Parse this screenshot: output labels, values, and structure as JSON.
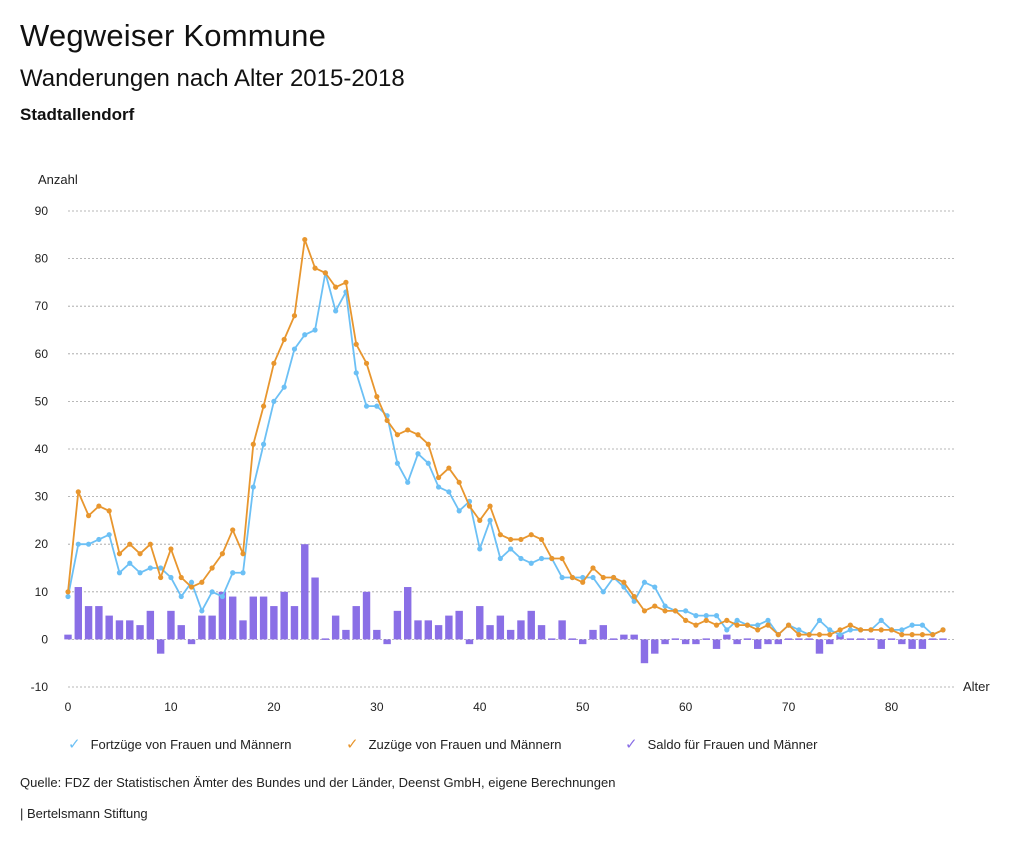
{
  "header": {
    "title": "Wegweiser Kommune",
    "subtitle": "Wanderungen nach Alter 2015-2018",
    "region": "Stadtallendorf"
  },
  "footer": {
    "source": "Quelle: FDZ der Statistischen Ämter des Bundes und der Länder, Deenst GmbH, eigene Berechnungen",
    "credit": "| Bertelsmann Stiftung"
  },
  "legend": {
    "item1": "Fortzüge von Frauen und Männern",
    "item2": "Zuzüge von Frauen und Männern",
    "item3": "Saldo für Frauen und Männer",
    "check": "✓"
  },
  "colors": {
    "fortzuege": "#6cc0f5",
    "zuzuege": "#e8962e",
    "saldo": "#8a6fe6",
    "grid": "#a0a0a0"
  },
  "chart_data": {
    "type": "line",
    "ylabel": "Anzahl",
    "xlabel": "Alter",
    "ylim": [
      -10,
      90
    ],
    "xlim": [
      0,
      85
    ],
    "yticks": [
      -10,
      0,
      10,
      20,
      30,
      40,
      50,
      60,
      70,
      80,
      90
    ],
    "xticks": [
      0,
      10,
      20,
      30,
      40,
      50,
      60,
      70,
      80
    ],
    "grid": true,
    "legend_position": "bottom",
    "x": [
      0,
      1,
      2,
      3,
      4,
      5,
      6,
      7,
      8,
      9,
      10,
      11,
      12,
      13,
      14,
      15,
      16,
      17,
      18,
      19,
      20,
      21,
      22,
      23,
      24,
      25,
      26,
      27,
      28,
      29,
      30,
      31,
      32,
      33,
      34,
      35,
      36,
      37,
      38,
      39,
      40,
      41,
      42,
      43,
      44,
      45,
      46,
      47,
      48,
      49,
      50,
      51,
      52,
      53,
      54,
      55,
      56,
      57,
      58,
      59,
      60,
      61,
      62,
      63,
      64,
      65,
      66,
      67,
      68,
      69,
      70,
      71,
      72,
      73,
      74,
      75,
      76,
      77,
      78,
      79,
      80,
      81,
      82,
      83,
      84,
      85
    ],
    "series": [
      {
        "name": "Fortzüge von Frauen und Männern",
        "type": "line",
        "values": [
          9,
          20,
          20,
          21,
          22,
          14,
          16,
          14,
          15,
          15,
          13,
          9,
          12,
          6,
          10,
          9,
          14,
          14,
          32,
          41,
          50,
          53,
          61,
          64,
          65,
          77,
          69,
          73,
          56,
          49,
          49,
          47,
          37,
          33,
          39,
          37,
          32,
          31,
          27,
          29,
          19,
          25,
          17,
          19,
          17,
          16,
          17,
          17,
          13,
          13,
          13,
          13,
          10,
          13,
          11,
          8,
          12,
          11,
          7,
          6,
          6,
          5,
          5,
          5,
          2,
          4,
          3,
          3,
          4,
          1,
          3,
          2,
          1,
          4,
          2,
          1,
          2,
          2,
          2,
          4,
          2,
          2,
          3,
          3,
          1,
          2
        ]
      },
      {
        "name": "Zuzüge von Frauen und Männern",
        "type": "line",
        "values": [
          10,
          31,
          26,
          28,
          27,
          18,
          20,
          18,
          20,
          13,
          19,
          13,
          11,
          12,
          15,
          18,
          23,
          18,
          41,
          49,
          58,
          63,
          68,
          84,
          78,
          77,
          74,
          75,
          62,
          58,
          51,
          46,
          43,
          44,
          43,
          41,
          34,
          36,
          33,
          28,
          25,
          28,
          22,
          21,
          21,
          22,
          21,
          17,
          17,
          13,
          12,
          15,
          13,
          13,
          12,
          9,
          6,
          7,
          6,
          6,
          4,
          3,
          4,
          3,
          4,
          3,
          3,
          2,
          3,
          1,
          3,
          1,
          1,
          1,
          1,
          2,
          3,
          2,
          2,
          2,
          2,
          1,
          1,
          1,
          1,
          2
        ]
      },
      {
        "name": "Saldo für Frauen und Männer",
        "type": "bar",
        "values": [
          1,
          11,
          7,
          7,
          5,
          4,
          4,
          3,
          6,
          -3,
          6,
          3,
          -1,
          5,
          5,
          10,
          9,
          4,
          9,
          9,
          7,
          10,
          7,
          20,
          13,
          0,
          5,
          2,
          7,
          10,
          2,
          -1,
          6,
          11,
          4,
          4,
          3,
          5,
          6,
          -1,
          7,
          3,
          5,
          2,
          4,
          6,
          3,
          0,
          4,
          0,
          -1,
          2,
          3,
          0,
          1,
          1,
          -5,
          -3,
          -1,
          0,
          -1,
          -1,
          0,
          -2,
          1,
          -1,
          0,
          -2,
          -1,
          -1,
          0,
          0,
          0,
          -3,
          -1,
          1,
          0,
          0,
          0,
          -2,
          0,
          -1,
          -2,
          -2,
          0,
          0
        ]
      }
    ]
  }
}
